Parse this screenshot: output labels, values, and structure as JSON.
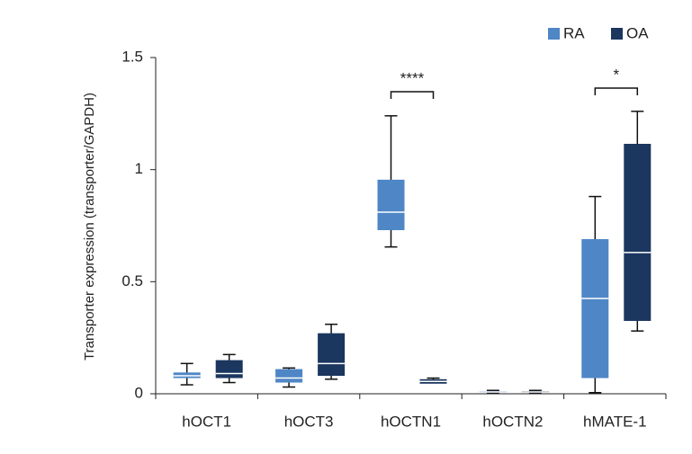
{
  "chart_data": {
    "type": "box",
    "y_label": "Transporter expression (transporter/GAPDH)",
    "categories": [
      "hOCT1",
      "hOCT3",
      "hOCTN1",
      "hOCTN2",
      "hMATE-1"
    ],
    "series": [
      {
        "name": "RA",
        "color": "#4f86c6",
        "low": [
          0.04,
          0.03,
          0.655,
          0.005,
          0.005
        ],
        "q1": [
          0.07,
          0.05,
          0.73,
          0.005,
          0.07
        ],
        "median": [
          0.08,
          0.07,
          0.81,
          0.008,
          0.425
        ],
        "q3": [
          0.095,
          0.11,
          0.955,
          0.012,
          0.69
        ],
        "high": [
          0.135,
          0.115,
          1.24,
          0.015,
          0.88
        ]
      },
      {
        "name": "OA",
        "color": "#1b365f",
        "low": [
          0.05,
          0.065,
          0.05,
          0.005,
          0.28
        ],
        "q1": [
          0.07,
          0.08,
          0.045,
          0.005,
          0.325
        ],
        "median": [
          0.09,
          0.135,
          0.055,
          0.008,
          0.63
        ],
        "q3": [
          0.15,
          0.27,
          0.065,
          0.012,
          1.115
        ],
        "high": [
          0.175,
          0.31,
          0.07,
          0.015,
          1.26
        ]
      }
    ],
    "annotations": [
      {
        "text": "****"
      },
      {
        "text": "*"
      }
    ],
    "ylim": [
      0,
      1.5
    ],
    "yticks": [
      0,
      0.5,
      1,
      1.5
    ],
    "legend": "top-right"
  }
}
